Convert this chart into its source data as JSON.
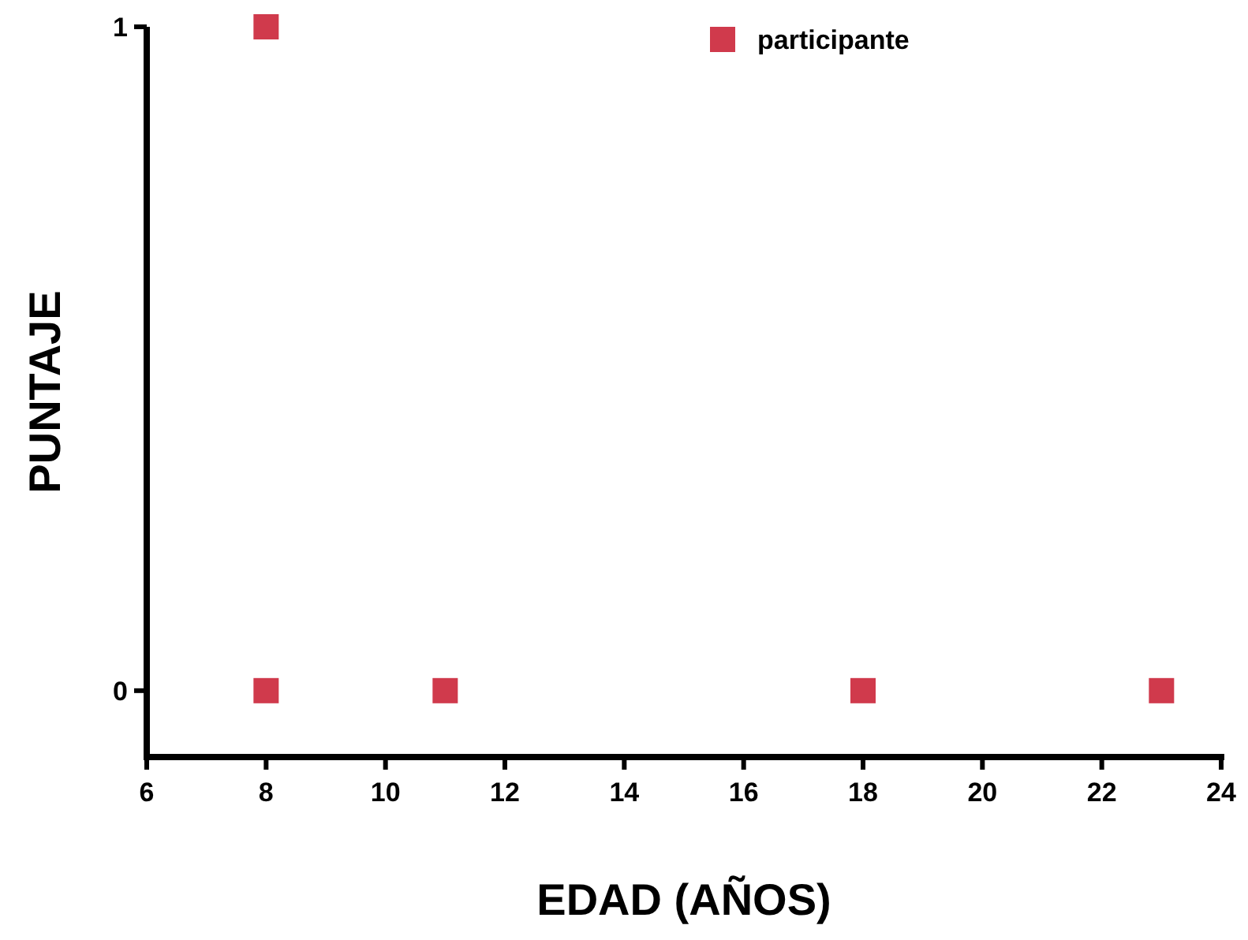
{
  "chart_data": {
    "type": "scatter",
    "xlabel": "EDAD (AÑOS)",
    "ylabel": "PUNTAJE",
    "x": [
      8,
      8,
      11,
      18,
      23
    ],
    "series": [
      {
        "name": "participante",
        "color": "#d03a4c",
        "values": [
          1,
          0,
          0,
          0,
          0
        ]
      }
    ],
    "xlim": [
      6,
      24
    ],
    "xticks": [
      6,
      8,
      10,
      12,
      14,
      16,
      18,
      20,
      22,
      24
    ],
    "ylim": [
      -0.1,
      1
    ],
    "yticks": [
      0,
      1
    ],
    "marker": "square",
    "legend": "top right",
    "grid": false
  }
}
